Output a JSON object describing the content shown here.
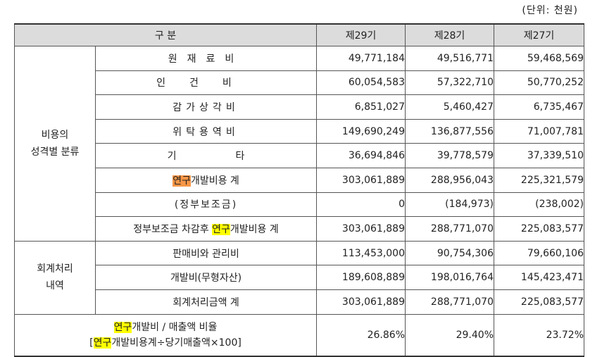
{
  "unit_note": "(단위: 천원)",
  "header": {
    "category": "구 분",
    "y29": "제29기",
    "y28": "제28기",
    "y27": "제27기"
  },
  "groups": {
    "cost_nature_line1": "비용의",
    "cost_nature_line2": "성격별 분류",
    "accounting_line1": "회계처리",
    "accounting_line2": "내역"
  },
  "rows": {
    "raw_materials": {
      "label": "원재료비",
      "y29": "49,771,184",
      "y28": "49,516,771",
      "y27": "59,468,569"
    },
    "labor": {
      "label": "인건비",
      "y29": "60,054,583",
      "y28": "57,322,710",
      "y27": "50,770,252"
    },
    "depreciation": {
      "label": "감가상각비",
      "y29": "6,851,027",
      "y28": "5,460,427",
      "y27": "6,735,467"
    },
    "outsourcing": {
      "label": "위탁용역비",
      "y29": "149,690,249",
      "y28": "136,877,556",
      "y27": "71,007,781"
    },
    "other": {
      "label_a": "기",
      "label_b": "타",
      "y29": "36,694,846",
      "y28": "39,778,579",
      "y27": "37,339,510"
    },
    "rnd_total": {
      "label_hl": "연구",
      "label_rest": "개발비용 계",
      "y29": "303,061,889",
      "y28": "288,956,043",
      "y27": "225,321,579"
    },
    "gov_subsidy": {
      "label": "(정부보조금)",
      "y29": "0",
      "y28": "(184,973)",
      "y27": "(238,002)"
    },
    "net_of_subsidy": {
      "label_pre": "정부보조금 차감후 ",
      "label_hl": "연구",
      "label_rest": "개발비용 계",
      "y29": "303,061,889",
      "y28": "288,771,070",
      "y27": "225,083,577"
    },
    "sga": {
      "label": "판매비와 관리비",
      "y29": "113,453,000",
      "y28": "90,754,306",
      "y27": "79,660,106"
    },
    "capitalized": {
      "label": "개발비(무형자산)",
      "y29": "189,608,889",
      "y28": "198,016,764",
      "y27": "145,423,471"
    },
    "accounting_total": {
      "label": "회계처리금액 계",
      "y29": "303,061,889",
      "y28": "288,771,070",
      "y27": "225,083,577"
    }
  },
  "ratio": {
    "line1_hl": "연구",
    "line1_rest": "개발비 / 매출액 비율",
    "line2_open": "[",
    "line2_hl": "연구",
    "line2_rest": "개발비용계÷당기매출액×100]",
    "y29": "26.86%",
    "y28": "29.40%",
    "y27": "23.72%"
  },
  "colors": {
    "header_bg": "#dcdcdc",
    "highlight_orange": "#f79646",
    "highlight_yellow": "#ffff00"
  }
}
